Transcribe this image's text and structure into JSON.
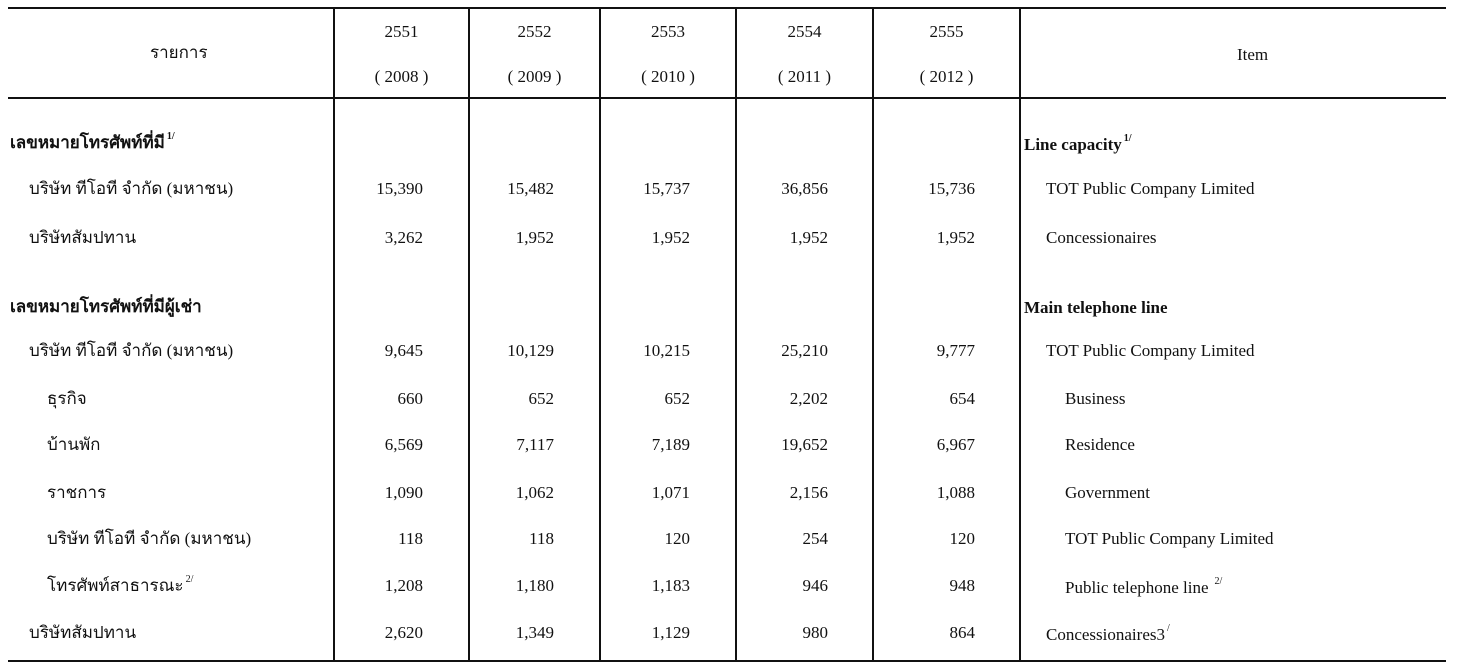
{
  "header": {
    "left_label": "รายการ",
    "right_label": "Item",
    "years": [
      {
        "be": "2551",
        "ce": "( 2008 )"
      },
      {
        "be": "2552",
        "ce": "( 2009 )"
      },
      {
        "be": "2553",
        "ce": "( 2010 )"
      },
      {
        "be": "2554",
        "ce": "( 2011 )"
      },
      {
        "be": "2555",
        "ce": "( 2012 )"
      }
    ]
  },
  "rows": [
    {
      "thai": "เลขหมายโทรศัพท์ที่มี",
      "thai_sup": "1/",
      "eng": "Line capacity",
      "eng_sup": "1/",
      "values": [
        "",
        "",
        "",
        "",
        ""
      ]
    },
    {
      "thai": "บริษัท ทีโอที จำกัด (มหาชน)",
      "thai_sup": "",
      "eng": "TOT Public Company Limited",
      "eng_sup": "",
      "values": [
        "15,390",
        "15,482",
        "15,737",
        "36,856",
        "15,736"
      ]
    },
    {
      "thai": "บริษัทสัมปทาน",
      "thai_sup": "",
      "eng": "Concessionaires",
      "eng_sup": "",
      "values": [
        "3,262",
        "1,952",
        "1,952",
        "1,952",
        "1,952"
      ]
    },
    {
      "thai": "เลขหมายโทรศัพท์ที่มีผู้เช่า",
      "thai_sup": "",
      "eng": "Main telephone line",
      "eng_sup": "",
      "values": [
        "",
        "",
        "",
        "",
        ""
      ]
    },
    {
      "thai": "บริษัท ทีโอที จำกัด (มหาชน)",
      "thai_sup": "",
      "eng": "TOT Public Company Limited",
      "eng_sup": "",
      "values": [
        "9,645",
        "10,129",
        "10,215",
        "25,210",
        "9,777"
      ]
    },
    {
      "thai": "ธุรกิจ",
      "thai_sup": "",
      "eng": "Business",
      "eng_sup": "",
      "values": [
        "660",
        "652",
        "652",
        "2,202",
        "654"
      ]
    },
    {
      "thai": "บ้านพัก",
      "thai_sup": "",
      "eng": "Residence",
      "eng_sup": "",
      "values": [
        "6,569",
        "7,117",
        "7,189",
        "19,652",
        "6,967"
      ]
    },
    {
      "thai": "ราชการ",
      "thai_sup": "",
      "eng": "Government",
      "eng_sup": "",
      "values": [
        "1,090",
        "1,062",
        "1,071",
        "2,156",
        "1,088"
      ]
    },
    {
      "thai": "บริษัท ทีโอที จำกัด (มหาชน)",
      "thai_sup": "",
      "eng": "TOT Public Company Limited",
      "eng_sup": "",
      "values": [
        "118",
        "118",
        "120",
        "254",
        "120"
      ]
    },
    {
      "thai": "โทรศัพท์สาธารณะ",
      "thai_sup": "2/",
      "eng": "Public telephone line",
      "eng_sup": "2/",
      "values": [
        "1,208",
        "1,180",
        "1,183",
        "946",
        "948"
      ]
    },
    {
      "thai": "บริษัทสัมปทาน",
      "thai_sup": "",
      "eng": "Concessionaires3",
      "eng_sup": "/",
      "values": [
        "2,620",
        "1,349",
        "1,129",
        "980",
        "864"
      ]
    }
  ]
}
